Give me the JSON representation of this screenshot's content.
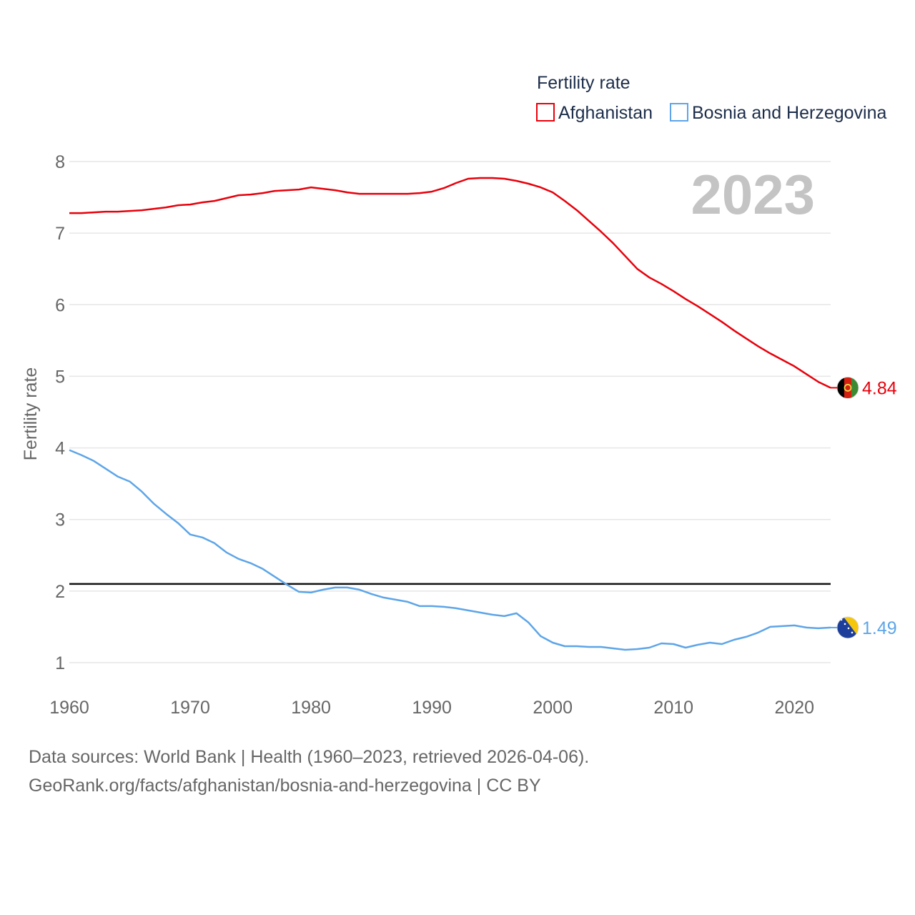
{
  "chart_data": {
    "type": "line",
    "legend_title": "Fertility rate",
    "ylabel": "Fertility rate",
    "year_badge": "2023",
    "xlim": [
      1960,
      2023
    ],
    "ylim": [
      0.6,
      8.2
    ],
    "yticks": [
      "1",
      "2",
      "3",
      "4",
      "5",
      "6",
      "7",
      "8"
    ],
    "xticks": [
      "1960",
      "1970",
      "1980",
      "1990",
      "2000",
      "2010",
      "2020"
    ],
    "reference_line": 2.1,
    "x": [
      1960,
      1961,
      1962,
      1963,
      1964,
      1965,
      1966,
      1967,
      1968,
      1969,
      1970,
      1971,
      1972,
      1973,
      1974,
      1975,
      1976,
      1977,
      1978,
      1979,
      1980,
      1981,
      1982,
      1983,
      1984,
      1985,
      1986,
      1987,
      1988,
      1989,
      1990,
      1991,
      1992,
      1993,
      1994,
      1995,
      1996,
      1997,
      1998,
      1999,
      2000,
      2001,
      2002,
      2003,
      2004,
      2005,
      2006,
      2007,
      2008,
      2009,
      2010,
      2011,
      2012,
      2013,
      2014,
      2015,
      2016,
      2017,
      2018,
      2019,
      2020,
      2021,
      2022,
      2023
    ],
    "series": [
      {
        "name": "Afghanistan",
        "color": "#e8000b",
        "end_label": "4.84",
        "values": [
          7.28,
          7.28,
          7.29,
          7.3,
          7.3,
          7.31,
          7.32,
          7.34,
          7.36,
          7.39,
          7.4,
          7.43,
          7.45,
          7.49,
          7.53,
          7.54,
          7.56,
          7.59,
          7.6,
          7.61,
          7.64,
          7.62,
          7.6,
          7.57,
          7.55,
          7.55,
          7.55,
          7.55,
          7.55,
          7.56,
          7.58,
          7.63,
          7.7,
          7.76,
          7.77,
          7.77,
          7.76,
          7.73,
          7.69,
          7.64,
          7.57,
          7.45,
          7.32,
          7.17,
          7.02,
          6.86,
          6.68,
          6.5,
          6.38,
          6.29,
          6.19,
          6.08,
          5.98,
          5.87,
          5.76,
          5.64,
          5.53,
          5.42,
          5.32,
          5.23,
          5.14,
          5.03,
          4.92,
          4.84
        ]
      },
      {
        "name": "Bosnia and Herzegovina",
        "color": "#5da5e8",
        "end_label": "1.49",
        "values": [
          3.97,
          3.9,
          3.82,
          3.71,
          3.6,
          3.53,
          3.39,
          3.22,
          3.08,
          2.95,
          2.79,
          2.75,
          2.67,
          2.54,
          2.45,
          2.39,
          2.31,
          2.2,
          2.09,
          1.99,
          1.98,
          2.02,
          2.05,
          2.05,
          2.02,
          1.96,
          1.91,
          1.88,
          1.85,
          1.79,
          1.79,
          1.78,
          1.76,
          1.73,
          1.7,
          1.67,
          1.65,
          1.69,
          1.56,
          1.37,
          1.28,
          1.23,
          1.23,
          1.22,
          1.22,
          1.2,
          1.18,
          1.19,
          1.21,
          1.27,
          1.26,
          1.21,
          1.25,
          1.28,
          1.26,
          1.32,
          1.36,
          1.42,
          1.5,
          1.51,
          1.52,
          1.49,
          1.48,
          1.49
        ]
      }
    ]
  },
  "footer": {
    "sources": "Data sources: World Bank | Health (1960–2023, retrieved 2026-04-06).",
    "link": "GeoRank.org/facts/afghanistan/bosnia-and-herzegovina | CC BY"
  }
}
